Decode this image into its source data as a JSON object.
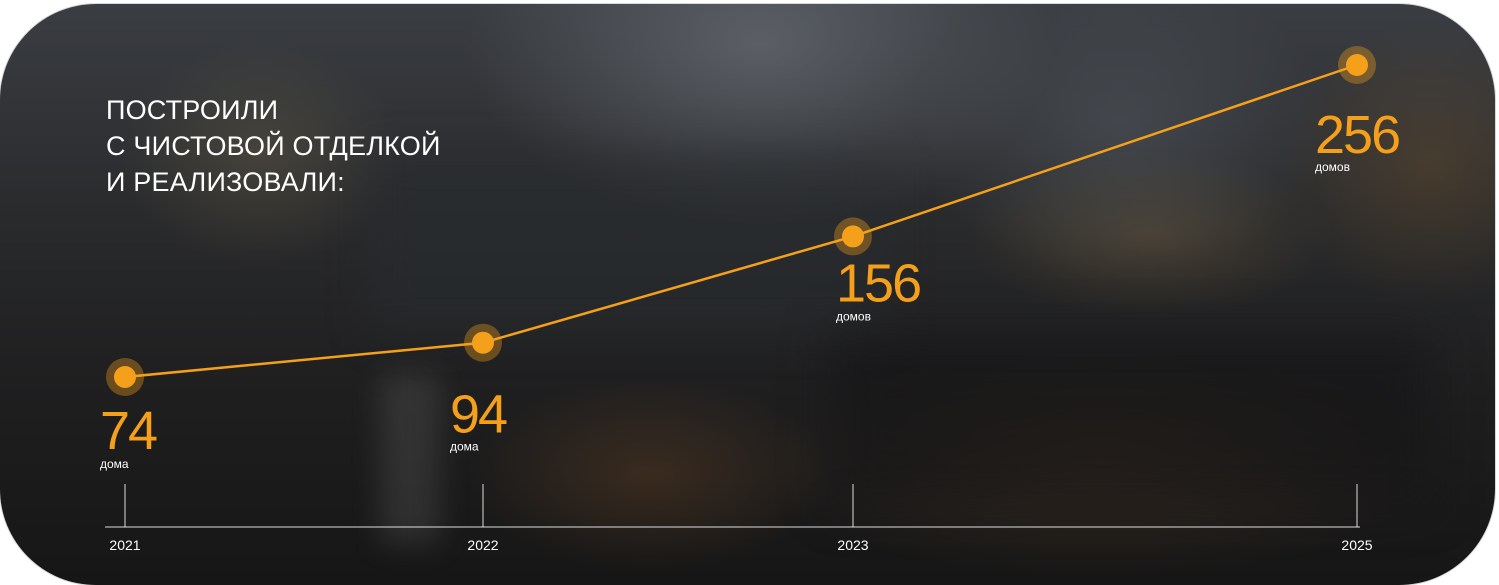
{
  "heading": {
    "line1": "ПОСТРОИЛИ",
    "line2": "С ЧИСТОВОЙ ОТДЕЛКОЙ",
    "line3": "И РЕАЛИЗОВАЛИ:"
  },
  "colors": {
    "accent": "#f5a01a",
    "text": "#ffffff"
  },
  "chart_data": {
    "type": "line",
    "categories": [
      "2021",
      "2022",
      "2023",
      "2025"
    ],
    "values": [
      74,
      94,
      156,
      256
    ],
    "value_labels": [
      "74",
      "94",
      "156",
      "256"
    ],
    "unit_labels": [
      "дома",
      "дома",
      "домов",
      "домов"
    ],
    "grid": false,
    "legend": "none"
  }
}
